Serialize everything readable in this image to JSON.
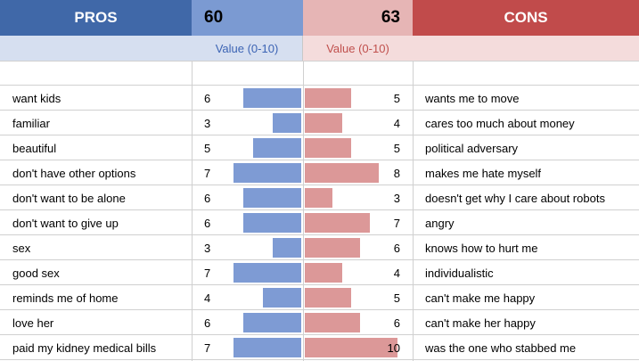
{
  "header": {
    "pros_label": "PROS",
    "pros_total": "60",
    "cons_total": "63",
    "cons_label": "CONS"
  },
  "subheader": {
    "pros_value_label": "Value (0-10)",
    "cons_value_label": "Value (0-10)"
  },
  "colors": {
    "pros_header": "#4068a8",
    "pros_bar": "#7e9bd4",
    "cons_header": "#c14b4b",
    "cons_bar": "#dc9898"
  },
  "rows": [
    {
      "pro": "want kids",
      "pro_value": 6,
      "con_value": 5,
      "con": "wants me to move"
    },
    {
      "pro": "familiar",
      "pro_value": 3,
      "con_value": 4,
      "con": "cares too much about money"
    },
    {
      "pro": "beautiful",
      "pro_value": 5,
      "con_value": 5,
      "con": "political adversary"
    },
    {
      "pro": "don't have other options",
      "pro_value": 7,
      "con_value": 8,
      "con": "makes me hate myself"
    },
    {
      "pro": "don't want to be alone",
      "pro_value": 6,
      "con_value": 3,
      "con": "doesn't get why I care about robots"
    },
    {
      "pro": "don't want to give up",
      "pro_value": 6,
      "con_value": 7,
      "con": "angry"
    },
    {
      "pro": "sex",
      "pro_value": 3,
      "con_value": 6,
      "con": "knows how to hurt me"
    },
    {
      "pro": "good sex",
      "pro_value": 7,
      "con_value": 4,
      "con": "individualistic"
    },
    {
      "pro": "reminds me of home",
      "pro_value": 4,
      "con_value": 5,
      "con": "can't make me happy"
    },
    {
      "pro": "love her",
      "pro_value": 6,
      "con_value": 6,
      "con": "can't make her happy"
    },
    {
      "pro": "paid my kidney medical bills",
      "pro_value": 7,
      "con_value": 10,
      "con": "was the one who stabbed me"
    }
  ]
}
